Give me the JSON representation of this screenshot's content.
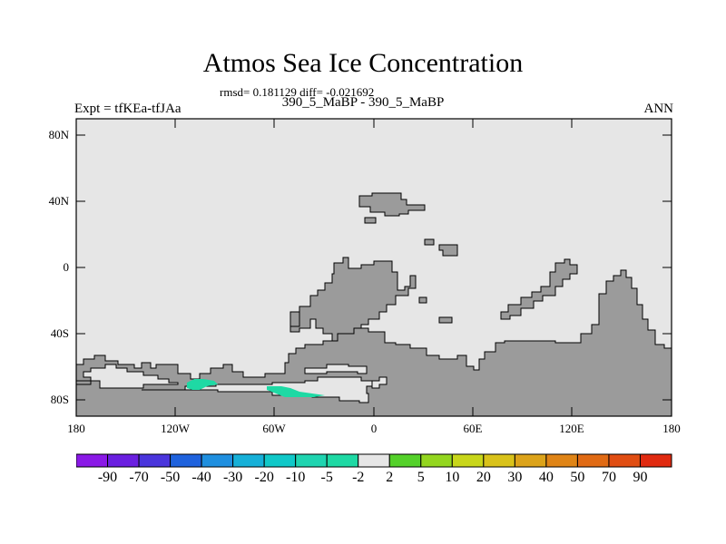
{
  "header": {
    "title": "Atmos Sea Ice Concentration",
    "stats": "rmsd= 0.181129 diff= -0.021692",
    "left_label": "Expt = tfKEa-tfJAa",
    "center_label": "390_5_MaBP - 390_5_MaBP",
    "right_label": "ANN"
  },
  "axes": {
    "y_ticks": [
      "80N",
      "40N",
      "0",
      "40S",
      "80S"
    ],
    "x_ticks": [
      "180",
      "120W",
      "60W",
      "0",
      "60E",
      "120E",
      "180"
    ]
  },
  "colorbar": {
    "labels": [
      "-90",
      "-70",
      "-50",
      "-40",
      "-30",
      "-20",
      "-10",
      "-5",
      "-2",
      "2",
      "5",
      "10",
      "20",
      "30",
      "40",
      "50",
      "70",
      "90"
    ],
    "colors": [
      "#8a19e6",
      "#6a1fe0",
      "#4a35dc",
      "#1f62dd",
      "#1f8fdf",
      "#16b0d8",
      "#10c8c8",
      "#1fd4b0",
      "#1ed9a4",
      "#e6e6e6",
      "#54d12a",
      "#93d61f",
      "#c8d61a",
      "#d9c21a",
      "#dca31a",
      "#df8416",
      "#e06a14",
      "#e04d12",
      "#e02a10"
    ]
  },
  "colors": {
    "background_field": "#e6e6e6",
    "land": "#9b9b9b",
    "anomaly_teal": "#1ed9a4"
  }
}
